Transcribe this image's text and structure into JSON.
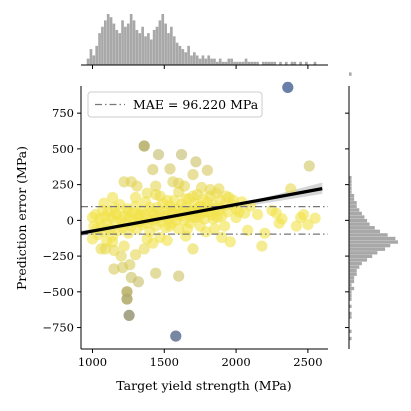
{
  "chart_data": {
    "type": "scatter",
    "xlabel": "Target yield strength (MPa)",
    "ylabel": "Prediction error (MPa)",
    "xlim": [
      920,
      2640
    ],
    "ylim": [
      -900,
      940
    ],
    "xticks": [
      1000,
      1500,
      2000,
      2500
    ],
    "xtick_labels": [
      "1000",
      "1500",
      "2000",
      "2500"
    ],
    "yticks": [
      -750,
      -500,
      -250,
      0,
      250,
      500,
      750
    ],
    "ytick_labels": [
      "−750",
      "−500",
      "−250",
      "0",
      "250",
      "500",
      "750"
    ],
    "mae": 96.22,
    "legend": {
      "label": "MAE = 96.220 MPa",
      "placement": "top-left"
    },
    "regression": {
      "start": [
        920,
        -90
      ],
      "end": [
        2600,
        222
      ],
      "band": [
        [
          920,
          -110,
          -72
        ],
        [
          1400,
          -22,
          2
        ],
        [
          1800,
          60,
          75
        ],
        [
          2200,
          120,
          160
        ],
        [
          2600,
          185,
          265
        ]
      ]
    },
    "colors": {
      "low_error": "#f2e24a",
      "mid_error": "#a5a07a",
      "high_error": "#5a719e",
      "regression": "#000000",
      "band": "#c8c8c8",
      "mae_line": "#777777",
      "histogram": "#a8a8a8"
    },
    "points": [
      [
        2360,
        930
      ],
      [
        1580,
        -810
      ],
      [
        1255,
        -665
      ],
      [
        1240,
        -550
      ],
      [
        1360,
        520
      ],
      [
        1460,
        460
      ],
      [
        1620,
        460
      ],
      [
        1720,
        410
      ],
      [
        2510,
        380
      ],
      [
        1420,
        355
      ],
      [
        1540,
        360
      ],
      [
        1800,
        350
      ],
      [
        1700,
        320
      ],
      [
        1220,
        270
      ],
      [
        1270,
        270
      ],
      [
        1560,
        270
      ],
      [
        1310,
        240
      ],
      [
        1440,
        240
      ],
      [
        1600,
        260
      ],
      [
        1640,
        240
      ],
      [
        1760,
        230
      ],
      [
        1820,
        215
      ],
      [
        1880,
        220
      ],
      [
        2380,
        220
      ],
      [
        1140,
        160
      ],
      [
        1380,
        190
      ],
      [
        1470,
        170
      ],
      [
        1520,
        140
      ],
      [
        1650,
        150
      ],
      [
        1700,
        170
      ],
      [
        1930,
        170
      ],
      [
        1950,
        160
      ],
      [
        1980,
        140
      ],
      [
        2040,
        130
      ],
      [
        1160,
        50
      ],
      [
        1250,
        60
      ],
      [
        1330,
        40
      ],
      [
        1400,
        90
      ],
      [
        1550,
        70
      ],
      [
        1680,
        60
      ],
      [
        1740,
        90
      ],
      [
        2020,
        60
      ],
      [
        2280,
        50
      ],
      [
        2450,
        20
      ],
      [
        2500,
        -30
      ],
      [
        2550,
        15
      ],
      [
        1600,
        40
      ],
      [
        1720,
        20
      ],
      [
        1780,
        60
      ],
      [
        1030,
        -60
      ],
      [
        1000,
        -130
      ],
      [
        1100,
        -150
      ],
      [
        1060,
        -200
      ],
      [
        1090,
        -200
      ],
      [
        1150,
        -210
      ],
      [
        1200,
        -250
      ],
      [
        1260,
        -310
      ],
      [
        1300,
        -240
      ],
      [
        1360,
        -200
      ],
      [
        1420,
        -160
      ],
      [
        1470,
        -120
      ],
      [
        1540,
        -40
      ],
      [
        1650,
        -110
      ],
      [
        1700,
        -200
      ],
      [
        1790,
        -80
      ],
      [
        1850,
        -60
      ],
      [
        1920,
        -40
      ],
      [
        2200,
        -90
      ],
      [
        2300,
        -20
      ],
      [
        2420,
        -40
      ],
      [
        1210,
        -330
      ],
      [
        1270,
        -400
      ],
      [
        1150,
        -340
      ],
      [
        1320,
        -430
      ],
      [
        1440,
        -370
      ],
      [
        1600,
        -390
      ],
      [
        1240,
        -500
      ],
      [
        1900,
        -120
      ],
      [
        2180,
        -180
      ],
      [
        1960,
        -150
      ],
      [
        2080,
        -70
      ],
      [
        1000,
        20
      ],
      [
        1010,
        -40
      ],
      [
        1020,
        40
      ],
      [
        1040,
        -100
      ],
      [
        1050,
        10
      ],
      [
        1060,
        -30
      ],
      [
        1070,
        70
      ],
      [
        1080,
        -80
      ],
      [
        1090,
        30
      ],
      [
        1100,
        -20
      ],
      [
        1110,
        60
      ],
      [
        1120,
        -60
      ],
      [
        1130,
        20
      ],
      [
        1140,
        -110
      ],
      [
        1150,
        90
      ],
      [
        1160,
        -10
      ],
      [
        1170,
        40
      ],
      [
        1180,
        -70
      ],
      [
        1190,
        110
      ],
      [
        1200,
        0
      ],
      [
        1210,
        -50
      ],
      [
        1220,
        30
      ],
      [
        1230,
        -20
      ],
      [
        1240,
        80
      ],
      [
        1250,
        -90
      ],
      [
        1260,
        20
      ],
      [
        1270,
        -40
      ],
      [
        1280,
        50
      ],
      [
        1290,
        0
      ],
      [
        1300,
        100
      ],
      [
        1310,
        -60
      ],
      [
        1320,
        30
      ],
      [
        1330,
        -10
      ],
      [
        1340,
        70
      ],
      [
        1350,
        -30
      ],
      [
        1360,
        40
      ],
      [
        1370,
        130
      ],
      [
        1380,
        -20
      ],
      [
        1390,
        10
      ],
      [
        1400,
        -80
      ],
      [
        1410,
        60
      ],
      [
        1420,
        0
      ],
      [
        1430,
        40
      ],
      [
        1440,
        -40
      ],
      [
        1450,
        90
      ],
      [
        1460,
        20
      ],
      [
        1470,
        60
      ],
      [
        1480,
        -10
      ],
      [
        1490,
        120
      ],
      [
        1500,
        30
      ],
      [
        1510,
        -50
      ],
      [
        1520,
        70
      ],
      [
        1530,
        10
      ],
      [
        1540,
        100
      ],
      [
        1550,
        -20
      ],
      [
        1560,
        50
      ],
      [
        1570,
        140
      ],
      [
        1580,
        0
      ],
      [
        1590,
        80
      ],
      [
        1600,
        -60
      ],
      [
        1610,
        30
      ],
      [
        1620,
        110
      ],
      [
        1630,
        60
      ],
      [
        1640,
        0
      ],
      [
        1650,
        90
      ],
      [
        1660,
        40
      ],
      [
        1670,
        150
      ],
      [
        1680,
        -20
      ],
      [
        1690,
        70
      ],
      [
        1700,
        20
      ],
      [
        1710,
        120
      ],
      [
        1720,
        60
      ],
      [
        1730,
        180
      ],
      [
        1740,
        30
      ],
      [
        1750,
        100
      ],
      [
        1760,
        50
      ],
      [
        1770,
        150
      ],
      [
        1780,
        10
      ],
      [
        1790,
        90
      ],
      [
        1800,
        130
      ],
      [
        1810,
        60
      ],
      [
        1820,
        170
      ],
      [
        1830,
        40
      ],
      [
        1840,
        110
      ],
      [
        1850,
        80
      ],
      [
        1860,
        190
      ],
      [
        1870,
        20
      ],
      [
        1880,
        70
      ],
      [
        1890,
        140
      ],
      [
        1900,
        30
      ],
      [
        1910,
        100
      ],
      [
        1940,
        60
      ],
      [
        1970,
        110
      ],
      [
        2000,
        80
      ],
      [
        2060,
        50
      ],
      [
        2100,
        100
      ],
      [
        2150,
        40
      ],
      [
        2250,
        70
      ],
      [
        1080,
        120
      ],
      [
        1140,
        -150
      ],
      [
        1220,
        -180
      ],
      [
        1300,
        160
      ],
      [
        1380,
        -130
      ],
      [
        1440,
        180
      ],
      [
        1520,
        -140
      ],
      [
        1600,
        200
      ],
      [
        1660,
        -60
      ],
      [
        1750,
        -40
      ],
      [
        1840,
        10
      ],
      [
        2000,
        20
      ],
      [
        2320,
        10
      ],
      [
        2470,
        40
      ]
    ],
    "histograms": {
      "x": {
        "bin_start": 960,
        "bin_width": 20,
        "counts": [
          2,
          5,
          3,
          6,
          10,
          12,
          14,
          16,
          15,
          13,
          11,
          10,
          14,
          12,
          13,
          16,
          14,
          11,
          10,
          12,
          9,
          10,
          8,
          11,
          12,
          14,
          16,
          13,
          10,
          12,
          9,
          7,
          6,
          5,
          4,
          6,
          3,
          4,
          3,
          2,
          3,
          2,
          3,
          2,
          2,
          1,
          2,
          1,
          1,
          2,
          2,
          1,
          1,
          1,
          1,
          2,
          1,
          1,
          1,
          1,
          0,
          1,
          1,
          1,
          1,
          1,
          0,
          1,
          0,
          1,
          0,
          1,
          1,
          0,
          1,
          0,
          1,
          0,
          0,
          1,
          0,
          0,
          0,
          0
        ]
      },
      "y": {
        "bin_start": -840,
        "bin_width": 25,
        "counts": [
          1,
          0,
          1,
          0,
          0,
          0,
          1,
          1,
          0,
          1,
          0,
          1,
          1,
          1,
          2,
          1,
          2,
          2,
          3,
          3,
          4,
          5,
          7,
          9,
          11,
          14,
          16,
          19,
          18,
          15,
          12,
          10,
          8,
          7,
          6,
          5,
          4,
          3,
          3,
          2,
          2,
          1,
          1,
          1,
          1,
          1,
          0,
          0,
          0,
          0,
          0,
          0,
          0,
          0,
          0,
          0,
          0,
          0,
          0,
          0,
          0,
          0,
          0,
          0,
          0,
          0,
          0,
          0,
          0,
          0,
          0,
          0,
          0,
          0,
          1
        ]
      }
    }
  }
}
